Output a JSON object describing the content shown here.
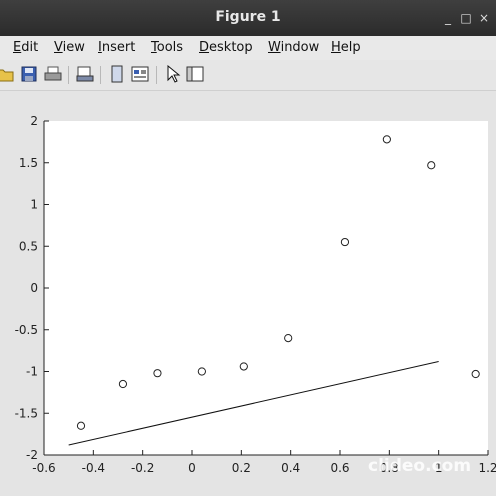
{
  "window": {
    "title": "Figure 1"
  },
  "menu": [
    {
      "label": "Edit",
      "u": "E",
      "rest": "dit"
    },
    {
      "label": "View",
      "u": "V",
      "rest": "iew"
    },
    {
      "label": "Insert",
      "u": "I",
      "rest": "nsert"
    },
    {
      "label": "Tools",
      "u": "T",
      "rest": "ools"
    },
    {
      "label": "Desktop",
      "u": "D",
      "rest": "esktop"
    },
    {
      "label": "Window",
      "u": "W",
      "rest": "indow"
    },
    {
      "label": "Help",
      "u": "H",
      "rest": "elp"
    }
  ],
  "toolbar": {
    "icons": [
      "open-folder-icon",
      "save-icon",
      "print-icon",
      "print-preview-icon",
      "figure-icon",
      "property-editor-icon",
      "pointer-icon",
      "plot-browser-icon"
    ]
  },
  "watermark": "clideo.com",
  "chart_data": {
    "type": "scatter",
    "xlim": [
      -0.6,
      1.2
    ],
    "ylim": [
      -2,
      2
    ],
    "xticks": [
      -0.6,
      -0.4,
      -0.2,
      0,
      0.2,
      0.4,
      0.6,
      0.8,
      1,
      1.2
    ],
    "yticks": [
      -2,
      -1.5,
      -1,
      -0.5,
      0,
      0.5,
      1,
      1.5,
      2
    ],
    "xtick_labels": [
      "-0.6",
      "-0.4",
      "-0.2",
      "0",
      "0.2",
      "0.4",
      "0.6",
      "0.8",
      "1",
      "1.2"
    ],
    "ytick_labels": [
      "-2",
      "-1.5",
      "-1",
      "-0.5",
      "0",
      "0.5",
      "1",
      "1.5",
      "2"
    ],
    "points": {
      "marker": "circle-open",
      "x": [
        -0.45,
        -0.28,
        -0.14,
        0.04,
        0.21,
        0.39,
        0.62,
        0.79,
        0.97,
        1.15
      ],
      "y": [
        -1.65,
        -1.15,
        -1.02,
        -1.0,
        -0.94,
        -0.6,
        0.55,
        1.78,
        1.47,
        -1.03
      ]
    },
    "line": {
      "x": [
        -0.5,
        1.0
      ],
      "y": [
        -1.88,
        -0.88
      ]
    },
    "grid": false
  }
}
